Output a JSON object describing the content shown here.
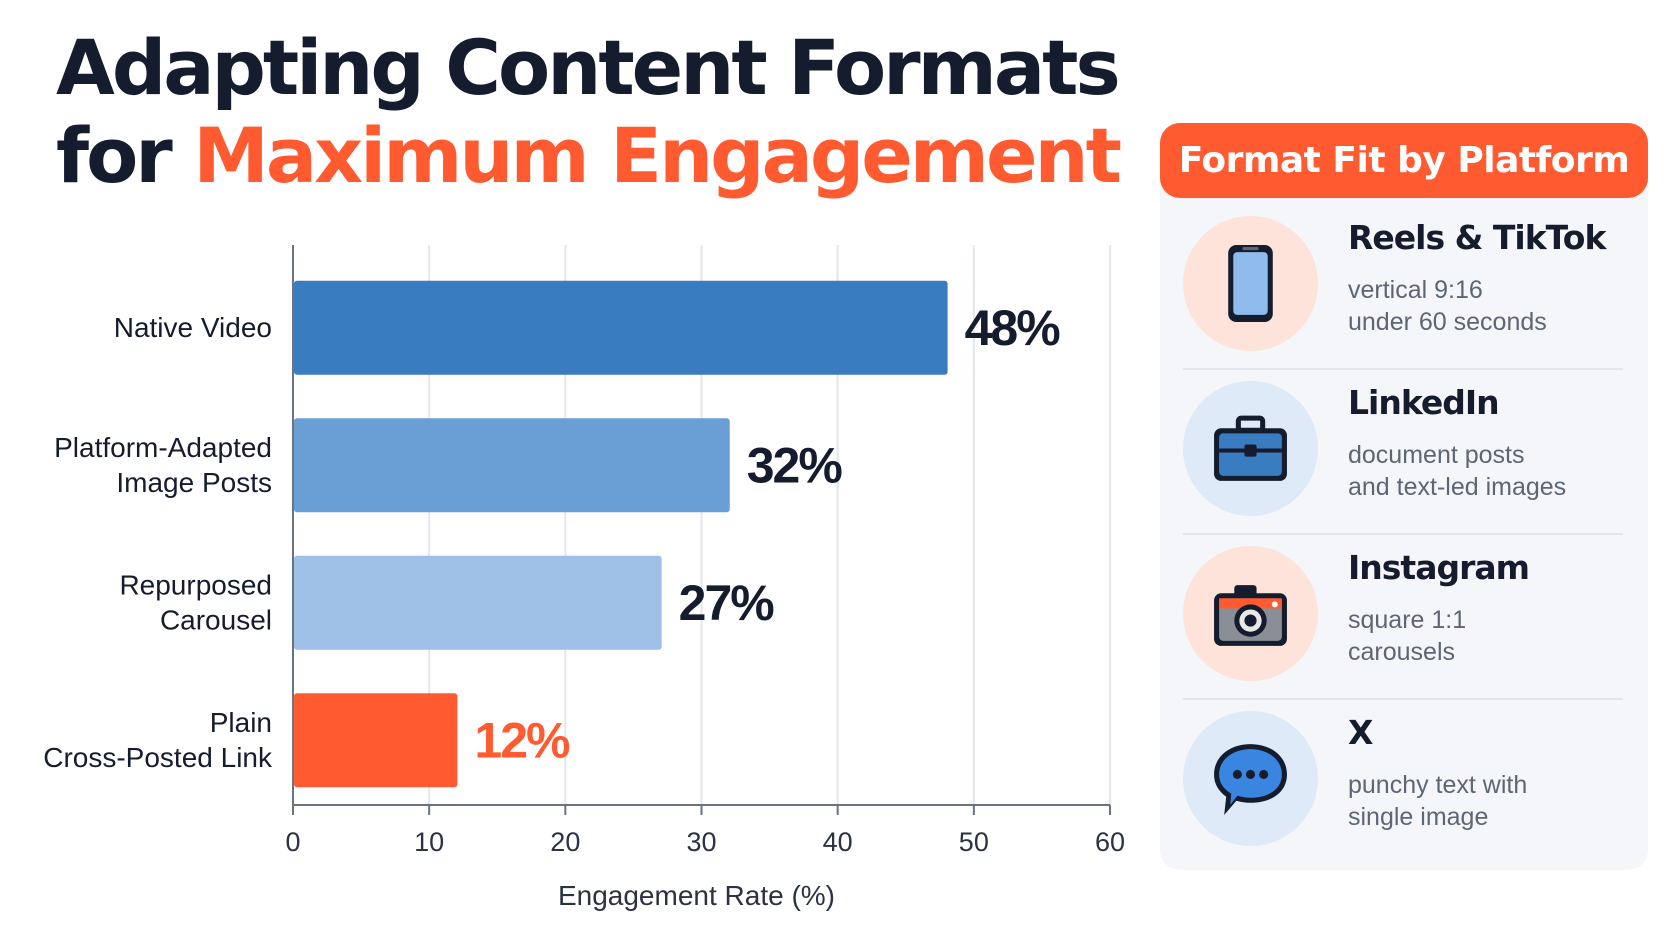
{
  "title": {
    "line1": "Adapting Content Formats",
    "line2_prefix": "for ",
    "line2_accent": "Maximum Engagement"
  },
  "chart_data": {
    "type": "bar",
    "orientation": "horizontal",
    "categories": [
      [
        "Native Video"
      ],
      [
        "Platform-Adapted",
        "Image Posts"
      ],
      [
        "Repurposed",
        "Carousel"
      ],
      [
        "Plain",
        "Cross-Posted Link"
      ]
    ],
    "values": [
      48,
      32,
      27,
      12
    ],
    "value_labels": [
      "48%",
      "32%",
      "27%",
      "12%"
    ],
    "bar_colors": [
      "#3a7cc0",
      "#6a9fd5",
      "#9ebfe6",
      "#ff5a30"
    ],
    "label_colors": [
      "#141c2e",
      "#141c2e",
      "#141c2e",
      "#ff5a30"
    ],
    "xlabel": "Engagement Rate (%)",
    "ylabel": "",
    "xlim": [
      0,
      60
    ],
    "xticks": [
      0,
      10,
      20,
      30,
      40,
      50,
      60
    ],
    "grid": true
  },
  "panel": {
    "header": "Format Fit by Platform",
    "platforms": [
      {
        "name": "Reels & TikTok",
        "desc_line1": "vertical 9:16",
        "desc_line2": "under 60 seconds",
        "icon": "smartphone-icon",
        "circle_color": "#fde3da"
      },
      {
        "name": "LinkedIn",
        "desc_line1": "document posts",
        "desc_line2": "and text-led images",
        "icon": "briefcase-icon",
        "circle_color": "#dfeaf8"
      },
      {
        "name": "Instagram",
        "desc_line1": "square 1:1",
        "desc_line2": "carousels",
        "icon": "camera-icon",
        "circle_color": "#fde3da"
      },
      {
        "name": "X",
        "desc_line1": "punchy text with",
        "desc_line2": "single image",
        "icon": "chat-bubble-icon",
        "circle_color": "#dfeaf8"
      }
    ]
  }
}
